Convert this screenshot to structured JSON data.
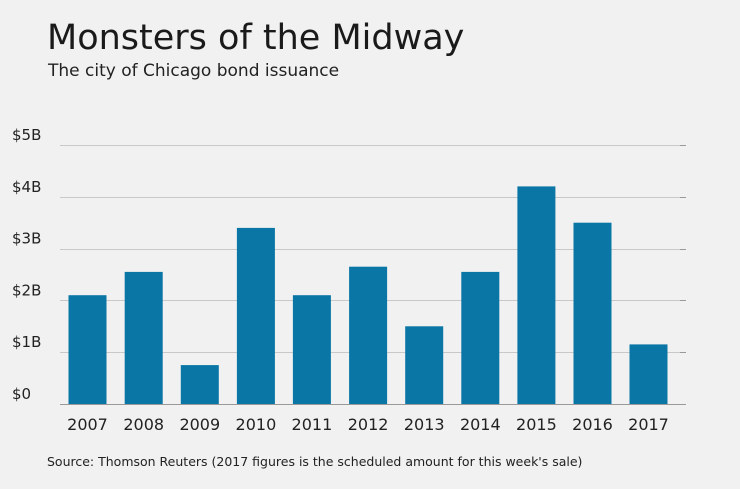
{
  "header": {
    "title": "Monsters of the Midway",
    "subtitle": "The city of Chicago bond issuance"
  },
  "footer": {
    "source": "Source: Thomson Reuters (2017 figures is the scheduled amount for this week's sale)"
  },
  "colors": {
    "bar": "#0a76a6",
    "grid": "#c8c8c8",
    "axis": "#999999",
    "background": "#f0f1f0"
  },
  "chart_data": {
    "type": "bar",
    "title": "Monsters of the Midway",
    "subtitle": "The city of Chicago bond issuance",
    "xlabel": "",
    "ylabel": "",
    "categories": [
      "2007",
      "2008",
      "2009",
      "2010",
      "2011",
      "2012",
      "2013",
      "2014",
      "2015",
      "2016",
      "2017"
    ],
    "values": [
      2.1,
      2.55,
      0.75,
      3.4,
      2.1,
      2.65,
      1.5,
      2.55,
      4.2,
      3.5,
      1.15
    ],
    "value_unit": "billions of dollars",
    "ylim": [
      0,
      5
    ],
    "yticks": [
      0,
      1,
      2,
      3,
      4,
      5
    ],
    "ytick_labels": [
      "$0",
      "$1B",
      "$2B",
      "$3B",
      "$4B",
      "$5B"
    ],
    "grid": true,
    "legend": "none"
  }
}
